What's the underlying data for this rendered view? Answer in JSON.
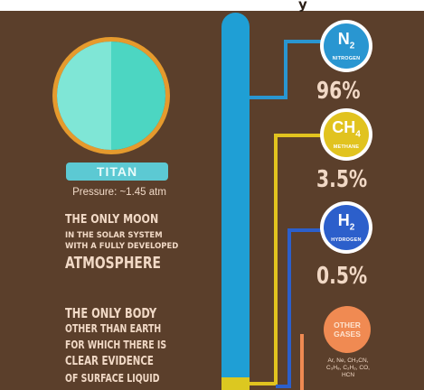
{
  "header_fragment": "y",
  "moon": {
    "name": "TITAN",
    "pressure": "Pressure: ~1.45 atm"
  },
  "fact1": {
    "line1": "THE ONLY MOON",
    "line2": "IN THE SOLAR SYSTEM",
    "line3": "WITH A FULLY DEVELOPED",
    "line4": "ATMOSPHERE"
  },
  "fact2": {
    "line1": "THE ONLY BODY",
    "line2": "OTHER THAN EARTH",
    "line3": "FOR WHICH THERE IS",
    "line4": "CLEAR EVIDENCE",
    "line5": "OF SURFACE LIQUID"
  },
  "gases": [
    {
      "symbol": "N",
      "subscript": "2",
      "name": "NITROGEN",
      "percent": "96%",
      "color": "#2996d1"
    },
    {
      "symbol": "CH",
      "subscript": "4",
      "name": "METHANE",
      "percent": "3.5%",
      "color": "#e1c31f"
    },
    {
      "symbol": "H",
      "subscript": "2",
      "name": "HYDROGEN",
      "percent": "0.5%",
      "color": "#2c5fcb"
    }
  ],
  "other_gases": {
    "label_line1": "OTHER",
    "label_line2": "GASES",
    "trace_line1": "Ar, Ne, CH₃CN,",
    "trace_line2": "C₃H₈, C₂H₂, CO,",
    "trace_line3": "HCN",
    "color": "#f08a52"
  },
  "colors": {
    "background": "#5b3f2b",
    "column": "#1f9fd5",
    "planet_light": "#7fe6d6",
    "planet_dark": "#4cd6c2",
    "planet_ring": "#e59a2d"
  }
}
